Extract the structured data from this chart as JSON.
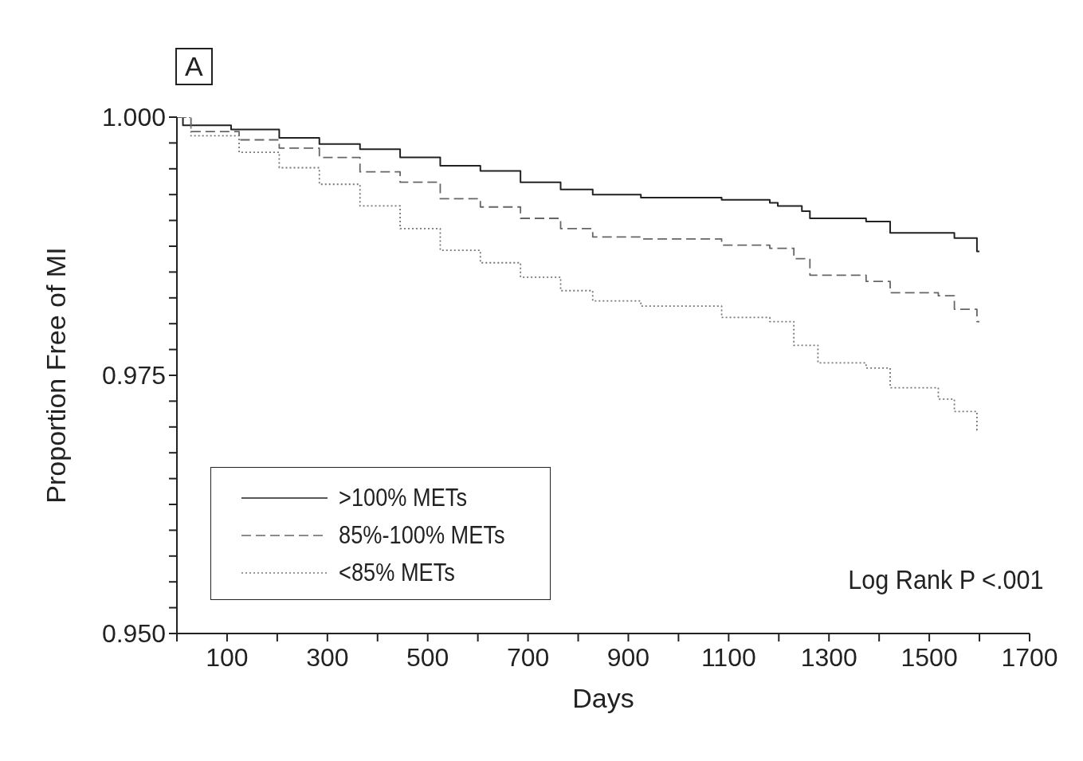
{
  "chart_data": {
    "type": "step",
    "xlabel": "Days",
    "ylabel": "Proportion Free of MI",
    "annotations": [
      "A",
      "Log Rank P <.001"
    ],
    "xlim": [
      0,
      1700
    ],
    "xticks": [
      {
        "value": 0,
        "label": null
      },
      100,
      {
        "value": 200,
        "label": null
      },
      300,
      {
        "value": 400,
        "label": null
      },
      500,
      {
        "value": 600,
        "label": null
      },
      700,
      {
        "value": 800,
        "label": null
      },
      900,
      {
        "value": 1000,
        "label": null
      },
      1100,
      {
        "value": 1200,
        "label": null
      },
      1300,
      {
        "value": 1400,
        "label": null
      },
      1500,
      {
        "value": 1600,
        "label": null
      },
      1700
    ],
    "ylim": [
      0.95,
      1.0
    ],
    "yticks": [
      {
        "value": 0.95,
        "label": "0.950"
      },
      {
        "value": 0.9525,
        "label": null
      },
      {
        "value": 0.955,
        "label": null
      },
      {
        "value": 0.9575,
        "label": null
      },
      {
        "value": 0.96,
        "label": null
      },
      {
        "value": 0.9625,
        "label": null
      },
      {
        "value": 0.965,
        "label": null
      },
      {
        "value": 0.9675,
        "label": null
      },
      {
        "value": 0.97,
        "label": null
      },
      {
        "value": 0.9725,
        "label": null
      },
      {
        "value": 0.975,
        "label": "0.975"
      },
      {
        "value": 0.9775,
        "label": null
      },
      {
        "value": 0.98,
        "label": null
      },
      {
        "value": 0.9825,
        "label": null
      },
      {
        "value": 0.985,
        "label": null
      },
      {
        "value": 0.9875,
        "label": null
      },
      {
        "value": 0.99,
        "label": null
      },
      {
        "value": 0.9925,
        "label": null
      },
      {
        "value": 0.995,
        "label": null
      },
      {
        "value": 0.9975,
        "label": null
      },
      {
        "value": 1.0,
        "label": "1.000"
      }
    ],
    "grid": false,
    "legend": "bottom left",
    "marker": "none",
    "series": [
      {
        "name": ">100% METs",
        "color": "#222222",
        "line_style": "solid",
        "x": [
          0,
          12,
          108,
          204,
          284,
          365,
          445,
          525,
          605,
          685,
          765,
          829,
          925,
          1086,
          1182,
          1198,
          1246,
          1262,
          1374,
          1422,
          1550,
          1595,
          1600
        ],
        "values": [
          1.0,
          0.9992,
          0.9988,
          0.998,
          0.9974,
          0.9969,
          0.9961,
          0.9953,
          0.9948,
          0.9937,
          0.993,
          0.9925,
          0.9922,
          0.992,
          0.9917,
          0.9914,
          0.9909,
          0.9902,
          0.9899,
          0.9888,
          0.9883,
          0.987,
          0.987
        ]
      },
      {
        "name": "85%-100% METs",
        "color": "#666666",
        "line_style": "dashed",
        "x": [
          0,
          28,
          124,
          204,
          284,
          365,
          445,
          525,
          605,
          685,
          765,
          829,
          925,
          1086,
          1182,
          1230,
          1262,
          1374,
          1422,
          1518,
          1550,
          1595,
          1600
        ],
        "values": [
          1.0,
          0.9986,
          0.9978,
          0.997,
          0.9961,
          0.9947,
          0.9937,
          0.9921,
          0.9913,
          0.9902,
          0.9892,
          0.9884,
          0.9882,
          0.9876,
          0.9873,
          0.9863,
          0.9847,
          0.9841,
          0.983,
          0.9827,
          0.9814,
          0.9802,
          0.9802
        ]
      },
      {
        "name": "<85% METs",
        "color": "#777777",
        "line_style": "dotted",
        "x": [
          0,
          28,
          124,
          204,
          284,
          365,
          445,
          525,
          605,
          685,
          765,
          829,
          925,
          1086,
          1182,
          1230,
          1278,
          1374,
          1422,
          1518,
          1550,
          1595,
          1600
        ],
        "values": [
          1.0,
          0.9982,
          0.9966,
          0.9951,
          0.9935,
          0.9914,
          0.9892,
          0.9871,
          0.9859,
          0.9845,
          0.9832,
          0.9822,
          0.9817,
          0.9806,
          0.9802,
          0.9779,
          0.9762,
          0.9757,
          0.9738,
          0.9727,
          0.9715,
          0.9697,
          0.9697
        ]
      }
    ]
  }
}
